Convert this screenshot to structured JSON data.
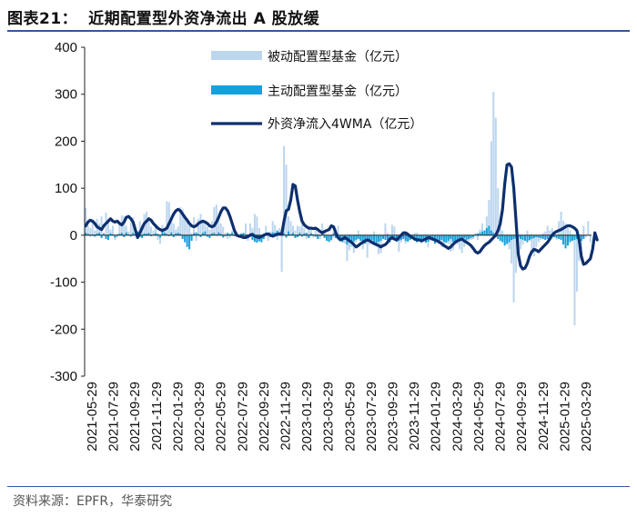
{
  "title_prefix": "图表21：",
  "title_text": "近期配置型外资净流出 A 股放缓",
  "source": "资料来源：EPFR，华泰研究",
  "colors": {
    "passive": "#bcd6ee",
    "active": "#15a2dc",
    "line": "#0d2f6e",
    "rule": "#2f5a9a"
  },
  "chart_data": {
    "type": "bar+line",
    "y_ticks": [
      "400",
      "300",
      "200",
      "100",
      "0",
      "-100",
      "-200",
      "-300"
    ],
    "ylim": [
      -300,
      400
    ],
    "x_ticks": [
      "2021-05-29",
      "2021-07-29",
      "2021-09-29",
      "2021-11-29",
      "2022-01-29",
      "2022-03-29",
      "2022-05-29",
      "2022-07-29",
      "2022-09-29",
      "2022-11-29",
      "2023-01-29",
      "2023-03-29",
      "2023-05-29",
      "2023-07-29",
      "2023-09-29",
      "2023-11-29",
      "2024-01-29",
      "2024-03-29",
      "2024-05-29",
      "2024-07-29",
      "2024-09-29",
      "2024-11-29",
      "2025-01-29",
      "2025-03-29"
    ],
    "series": [
      {
        "name": "被动配置型基金（亿元）",
        "kind": "bar",
        "values": [
          58,
          20,
          15,
          30,
          10,
          35,
          25,
          40,
          5,
          48,
          35,
          12,
          20,
          -10,
          -5,
          30,
          42,
          40,
          20,
          8,
          28,
          38,
          15,
          -5,
          30,
          22,
          45,
          50,
          35,
          18,
          10,
          25,
          -10,
          -18,
          22,
          15,
          72,
          70,
          30,
          25,
          12,
          18,
          60,
          55,
          40,
          30,
          20,
          5,
          38,
          -12,
          35,
          45,
          32,
          25,
          18,
          12,
          30,
          60,
          65,
          40,
          25,
          18,
          5,
          -8,
          -5,
          10,
          15,
          8,
          -5,
          4,
          -5,
          25,
          -12,
          25,
          15,
          45,
          40,
          15,
          -10,
          -5,
          20,
          -12,
          8,
          30,
          22,
          -10,
          15,
          -78,
          190,
          150,
          40,
          30,
          20,
          10,
          20,
          18,
          40,
          15,
          -8,
          20,
          15,
          -5,
          10,
          5,
          -8,
          25,
          10,
          -8,
          -15,
          -12,
          -5,
          12,
          20,
          -10,
          -12,
          -18,
          -55,
          -32,
          -25,
          -38,
          -15,
          10,
          -12,
          -30,
          -18,
          -48,
          -20,
          -15,
          8,
          -25,
          -40,
          -38,
          -5,
          25,
          5,
          -12,
          22,
          18,
          -10,
          -35,
          -15,
          -5,
          -18,
          -10,
          -8,
          -5,
          5,
          5,
          -8,
          -18,
          -15,
          -10,
          -25,
          -12,
          -8,
          -18,
          -10,
          -15,
          -25,
          -20,
          -15,
          -18,
          -35,
          -32,
          -15,
          -20,
          -30,
          -38,
          -25,
          -15,
          -12,
          -10,
          -8,
          5,
          -10,
          12,
          25,
          10,
          40,
          75,
          200,
          305,
          250,
          100,
          30,
          10,
          -10,
          -20,
          -30,
          -60,
          -143,
          -80,
          -40,
          -30,
          -20,
          -5,
          10,
          -12,
          -30,
          -45,
          -25,
          -15,
          -10,
          5,
          8,
          20,
          10,
          15,
          -5,
          -10,
          30,
          50,
          30,
          25,
          15,
          10,
          -8,
          -192,
          -120,
          -55,
          -30,
          20,
          -5,
          30,
          -15
        ]
      },
      {
        "name": "主动配置型基金（亿元）",
        "kind": "bar",
        "values": [
          5,
          3,
          -2,
          2,
          -3,
          4,
          5,
          -6,
          3,
          -8,
          -10,
          4,
          2,
          -5,
          2,
          3,
          5,
          -4,
          6,
          2,
          -3,
          5,
          2,
          8,
          -4,
          -6,
          4,
          3,
          5,
          -2,
          2,
          4,
          3,
          -5,
          8,
          5,
          3,
          -2,
          6,
          -4,
          4,
          5,
          3,
          -8,
          -15,
          -25,
          -30,
          -12,
          4,
          6,
          3,
          -4,
          5,
          8,
          -3,
          -6,
          4,
          5,
          2,
          6,
          3,
          -5,
          -2,
          5,
          3,
          5,
          -2,
          4,
          -4,
          3,
          5,
          -6,
          2,
          4,
          -10,
          -14,
          -16,
          -13,
          -15,
          -8,
          5,
          2,
          -4,
          6,
          5,
          10,
          3,
          12,
          4,
          -5,
          8,
          2,
          5,
          -6,
          -4,
          5,
          -3,
          4,
          5,
          -6,
          4,
          2,
          -3,
          -8,
          -2,
          4,
          -6,
          -12,
          -14,
          -10,
          5,
          -6,
          -8,
          -12,
          -15,
          -10,
          -20,
          -14,
          -18,
          -13,
          -10,
          -8,
          -12,
          -15,
          -18,
          -14,
          -12,
          -10,
          -15,
          -18,
          -14,
          -12,
          -8,
          -10,
          -12,
          -15,
          -10,
          -8,
          -14,
          -12,
          -10,
          -8,
          -12,
          -14,
          -10,
          -8,
          -12,
          -15,
          -10,
          -8,
          -12,
          -16,
          -14,
          -10,
          -12,
          -18,
          -15,
          -12,
          -10,
          -14,
          -16,
          -12,
          -8,
          -14,
          -15,
          -12,
          -10,
          -8,
          -6,
          -10,
          -8,
          -6,
          -4,
          2,
          4,
          5,
          8,
          10,
          15,
          20,
          10,
          5,
          -4,
          -8,
          -12,
          -15,
          -22,
          -18,
          -15,
          -10,
          -8,
          -6,
          -5,
          -8,
          -10,
          -12,
          -15,
          -10,
          -8,
          -6,
          -4,
          -5,
          -6,
          -8,
          -10,
          -8,
          -6,
          -5,
          -4,
          -6,
          -8,
          -10,
          -20,
          -28,
          -22,
          -15,
          -12,
          -10,
          -8,
          -10,
          -12,
          -8
        ]
      },
      {
        "name": "外资净流入4WMA（亿元）",
        "kind": "line",
        "values": [
          20,
          28,
          32,
          30,
          25,
          18,
          15,
          12,
          20,
          25,
          30,
          35,
          30,
          28,
          30,
          25,
          22,
          28,
          38,
          40,
          35,
          28,
          12,
          -5,
          5,
          15,
          25,
          30,
          35,
          32,
          25,
          20,
          15,
          12,
          10,
          12,
          15,
          25,
          35,
          45,
          52,
          55,
          52,
          45,
          38,
          32,
          25,
          20,
          18,
          20,
          25,
          28,
          30,
          28,
          25,
          20,
          18,
          20,
          28,
          38,
          50,
          58,
          58,
          52,
          40,
          25,
          10,
          0,
          -2,
          -3,
          -5,
          -5,
          -3,
          0,
          2,
          -2,
          -4,
          -5,
          -3,
          0,
          2,
          3,
          0,
          -2,
          0,
          2,
          3,
          2,
          30,
          52,
          55,
          75,
          108,
          105,
          75,
          50,
          30,
          22,
          18,
          15,
          15,
          14,
          15,
          12,
          8,
          5,
          8,
          10,
          12,
          20,
          18,
          5,
          -5,
          -10,
          -8,
          -5,
          -8,
          -12,
          -15,
          -20,
          -25,
          -22,
          -18,
          -15,
          -12,
          -10,
          -12,
          -15,
          -18,
          -20,
          -22,
          -25,
          -22,
          -20,
          -15,
          -8,
          -5,
          -8,
          -10,
          -5,
          0,
          5,
          5,
          2,
          -2,
          -5,
          -8,
          -10,
          -10,
          -12,
          -10,
          -8,
          -5,
          -6,
          -8,
          -10,
          -12,
          -15,
          -18,
          -22,
          -25,
          -28,
          -25,
          -20,
          -15,
          -12,
          -10,
          -8,
          -12,
          -15,
          -18,
          -22,
          -28,
          -35,
          -38,
          -35,
          -28,
          -22,
          -18,
          -15,
          -10,
          -5,
          0,
          10,
          25,
          55,
          110,
          150,
          152,
          145,
          100,
          30,
          -40,
          -65,
          -72,
          -70,
          -60,
          -45,
          -35,
          -30,
          -32,
          -35,
          -30,
          -25,
          -20,
          -15,
          -8,
          0,
          5,
          8,
          10,
          12,
          15,
          18,
          20,
          20,
          18,
          15,
          10,
          -10,
          -45,
          -62,
          -60,
          -55,
          -50,
          -30,
          5,
          -10
        ]
      }
    ]
  }
}
